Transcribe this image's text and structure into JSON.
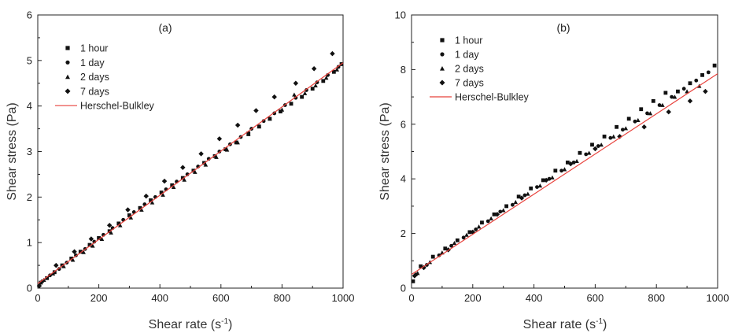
{
  "chart_data": [
    {
      "type": "scatter",
      "panel_label": "(a)",
      "xlabel": "Shear rate (s",
      "xlabel_sup": "-1",
      "xlabel_end": ")",
      "ylabel": "Shear stress (Pa)",
      "xlim": [
        0,
        1000
      ],
      "ylim": [
        0,
        6
      ],
      "xticks": [
        "0",
        "200",
        "400",
        "600",
        "800",
        "1000"
      ],
      "yticks": [
        "0",
        "1",
        "2",
        "3",
        "4",
        "5",
        "6"
      ],
      "grid": false,
      "legend_position": "top-left",
      "legend": [
        {
          "label": "1 hour",
          "marker": "square"
        },
        {
          "label": "1 day",
          "marker": "circle"
        },
        {
          "label": "2 days",
          "marker": "triangle"
        },
        {
          "label": "7 days",
          "marker": "diamond"
        },
        {
          "label": "Herschel-Bulkley",
          "marker": "line"
        }
      ],
      "series": [
        {
          "name": "1 hour",
          "marker": "square",
          "x": [
            10,
            30,
            55,
            80,
            110,
            140,
            170,
            200,
            235,
            265,
            300,
            335,
            370,
            405,
            440,
            475,
            510,
            545,
            580,
            615,
            650,
            690,
            725,
            760,
            795,
            830,
            865,
            900,
            935,
            970,
            995
          ],
          "y": [
            0.12,
            0.22,
            0.35,
            0.5,
            0.65,
            0.8,
            0.95,
            1.1,
            1.25,
            1.42,
            1.6,
            1.76,
            1.93,
            2.1,
            2.26,
            2.42,
            2.58,
            2.75,
            2.9,
            3.05,
            3.2,
            3.4,
            3.55,
            3.72,
            3.88,
            4.05,
            4.2,
            4.38,
            4.55,
            4.75,
            4.92
          ]
        },
        {
          "name": "1 day",
          "marker": "circle",
          "x": [
            15,
            40,
            70,
            95,
            125,
            155,
            185,
            215,
            245,
            280,
            315,
            350,
            385,
            420,
            455,
            490,
            525,
            560,
            595,
            630,
            665,
            700,
            740,
            775,
            810,
            845,
            880,
            915,
            950,
            985
          ],
          "y": [
            0.15,
            0.28,
            0.42,
            0.56,
            0.72,
            0.86,
            1.02,
            1.17,
            1.32,
            1.5,
            1.67,
            1.84,
            2.0,
            2.17,
            2.34,
            2.5,
            2.67,
            2.84,
            3.0,
            3.16,
            3.32,
            3.5,
            3.67,
            3.84,
            4.02,
            4.18,
            4.35,
            4.52,
            4.68,
            4.86
          ]
        },
        {
          "name": "2 days",
          "marker": "triangle",
          "x": [
            20,
            50,
            85,
            115,
            150,
            180,
            210,
            240,
            270,
            305,
            340,
            375,
            410,
            445,
            480,
            515,
            550,
            585,
            620,
            655,
            690,
            725,
            760,
            800,
            840,
            875,
            910,
            945,
            980
          ],
          "y": [
            0.18,
            0.32,
            0.48,
            0.62,
            0.79,
            0.93,
            1.08,
            1.22,
            1.38,
            1.55,
            1.72,
            1.88,
            2.05,
            2.22,
            2.38,
            2.55,
            2.71,
            2.88,
            3.04,
            3.2,
            3.38,
            3.55,
            3.72,
            3.92,
            4.25,
            4.28,
            4.45,
            4.62,
            4.8
          ]
        },
        {
          "name": "7 days",
          "marker": "diamond",
          "x": [
            5,
            60,
            120,
            175,
            235,
            295,
            355,
            415,
            475,
            535,
            595,
            655,
            715,
            775,
            845,
            905,
            965
          ],
          "y": [
            0.05,
            0.5,
            0.8,
            1.08,
            1.38,
            1.72,
            2.02,
            2.35,
            2.65,
            2.95,
            3.28,
            3.58,
            3.9,
            4.2,
            4.5,
            4.82,
            5.15
          ]
        },
        {
          "name": "Herschel-Bulkley",
          "marker": "line",
          "x": [
            0,
            1000
          ],
          "y": [
            0.1,
            4.95
          ]
        }
      ]
    },
    {
      "type": "scatter",
      "panel_label": "(b)",
      "xlabel": "Shear rate (s",
      "xlabel_sup": "-1",
      "xlabel_end": ")",
      "ylabel": "Shear stress (Pa)",
      "xlim": [
        0,
        1000
      ],
      "ylim": [
        0,
        10
      ],
      "xticks": [
        "0",
        "200",
        "400",
        "600",
        "800",
        "1000"
      ],
      "yticks": [
        "0",
        "2",
        "4",
        "6",
        "8",
        "10"
      ],
      "grid": false,
      "legend_position": "top-left",
      "legend": [
        {
          "label": "1 hour",
          "marker": "square"
        },
        {
          "label": "1 day",
          "marker": "circle"
        },
        {
          "label": "2 days",
          "marker": "triangle"
        },
        {
          "label": "7 days",
          "marker": "diamond"
        },
        {
          "label": "Herschel-Bulkley",
          "marker": "line"
        }
      ],
      "series": [
        {
          "name": "1 hour",
          "marker": "square",
          "x": [
            5,
            30,
            70,
            110,
            150,
            190,
            230,
            270,
            310,
            350,
            390,
            430,
            470,
            510,
            550,
            590,
            630,
            670,
            710,
            750,
            790,
            830,
            870,
            910,
            950,
            990
          ],
          "y": [
            0.25,
            0.8,
            1.15,
            1.45,
            1.75,
            2.05,
            2.4,
            2.7,
            3.0,
            3.35,
            3.65,
            3.95,
            4.3,
            4.6,
            4.95,
            5.25,
            5.55,
            5.9,
            6.2,
            6.55,
            6.85,
            7.15,
            7.2,
            7.5,
            7.8,
            8.15
          ]
        },
        {
          "name": "1 day",
          "marker": "circle",
          "x": [
            15,
            50,
            90,
            130,
            170,
            210,
            250,
            290,
            330,
            370,
            410,
            450,
            490,
            530,
            570,
            610,
            650,
            690,
            730,
            770,
            810,
            850,
            890,
            930,
            970
          ],
          "y": [
            0.5,
            0.85,
            1.2,
            1.55,
            1.85,
            2.15,
            2.45,
            2.8,
            3.05,
            3.4,
            3.7,
            4.0,
            4.3,
            4.6,
            4.9,
            5.2,
            5.5,
            5.8,
            6.1,
            6.4,
            6.7,
            7.0,
            7.3,
            7.6,
            7.9
          ]
        },
        {
          "name": "2 days",
          "marker": "triangle",
          "x": [
            20,
            60,
            100,
            140,
            180,
            220,
            260,
            300,
            340,
            380,
            420,
            460,
            500,
            540,
            580,
            620,
            660,
            700,
            740,
            780,
            820,
            860,
            900,
            940
          ],
          "y": [
            0.55,
            0.95,
            1.3,
            1.65,
            1.95,
            2.25,
            2.55,
            2.85,
            3.15,
            3.45,
            3.75,
            4.05,
            4.35,
            4.65,
            4.95,
            5.25,
            5.55,
            5.85,
            6.15,
            6.4,
            6.7,
            7.0,
            7.2,
            7.4
          ]
        },
        {
          "name": "7 days",
          "marker": "diamond",
          "x": [
            10,
            40,
            120,
            200,
            280,
            360,
            440,
            520,
            600,
            680,
            760,
            840,
            910,
            960
          ],
          "y": [
            0.45,
            0.75,
            1.4,
            2.05,
            2.7,
            3.3,
            3.95,
            4.55,
            5.1,
            5.55,
            5.9,
            6.45,
            6.85,
            7.2
          ]
        },
        {
          "name": "Herschel-Bulkley",
          "marker": "line",
          "x": [
            0,
            1000
          ],
          "y": [
            0.5,
            7.85
          ]
        }
      ]
    }
  ]
}
